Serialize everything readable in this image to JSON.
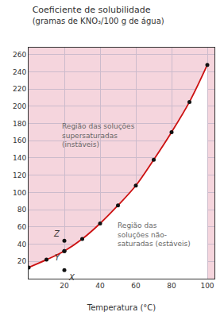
{
  "chart_data": {
    "type": "line",
    "title": "Coeficiente de solubilidade",
    "subtitle": "(gramas de KNO₃/100 g de água)",
    "xlabel": "Temperatura (°C)",
    "annotations": [
      "Região das soluções\nsupersaturadas\n(instáveis)",
      "Região das\nsoluções não-\nsaturadas (estáveis)"
    ],
    "series": [
      {
        "type": "line",
        "color": "#cc1111",
        "x": [
          0,
          10,
          20,
          30,
          40,
          50,
          60,
          70,
          80,
          90,
          100
        ],
        "values": [
          13,
          22,
          32,
          46,
          64,
          85,
          108,
          138,
          170,
          205,
          248
        ]
      },
      {
        "type": "scatter",
        "color": "#111111",
        "x": [
          0,
          10,
          20,
          30,
          40,
          50,
          60,
          70,
          80,
          90,
          100
        ],
        "values": [
          13,
          22,
          32,
          46,
          64,
          85,
          108,
          138,
          170,
          205,
          248
        ]
      },
      {
        "type": "scatter",
        "color": "#111111",
        "x": [
          20,
          20,
          20
        ],
        "values": [
          10,
          32,
          44
        ],
        "labels": [
          "X",
          "Y",
          "Z"
        ]
      }
    ],
    "xlim": [
      0,
      104
    ],
    "xticks": [
      20,
      40,
      60,
      80,
      100
    ],
    "ylim": [
      0,
      268
    ],
    "yticks": [
      20,
      40,
      60,
      80,
      100,
      120,
      140,
      160,
      180,
      200,
      220,
      240,
      260
    ],
    "grid": true
  }
}
